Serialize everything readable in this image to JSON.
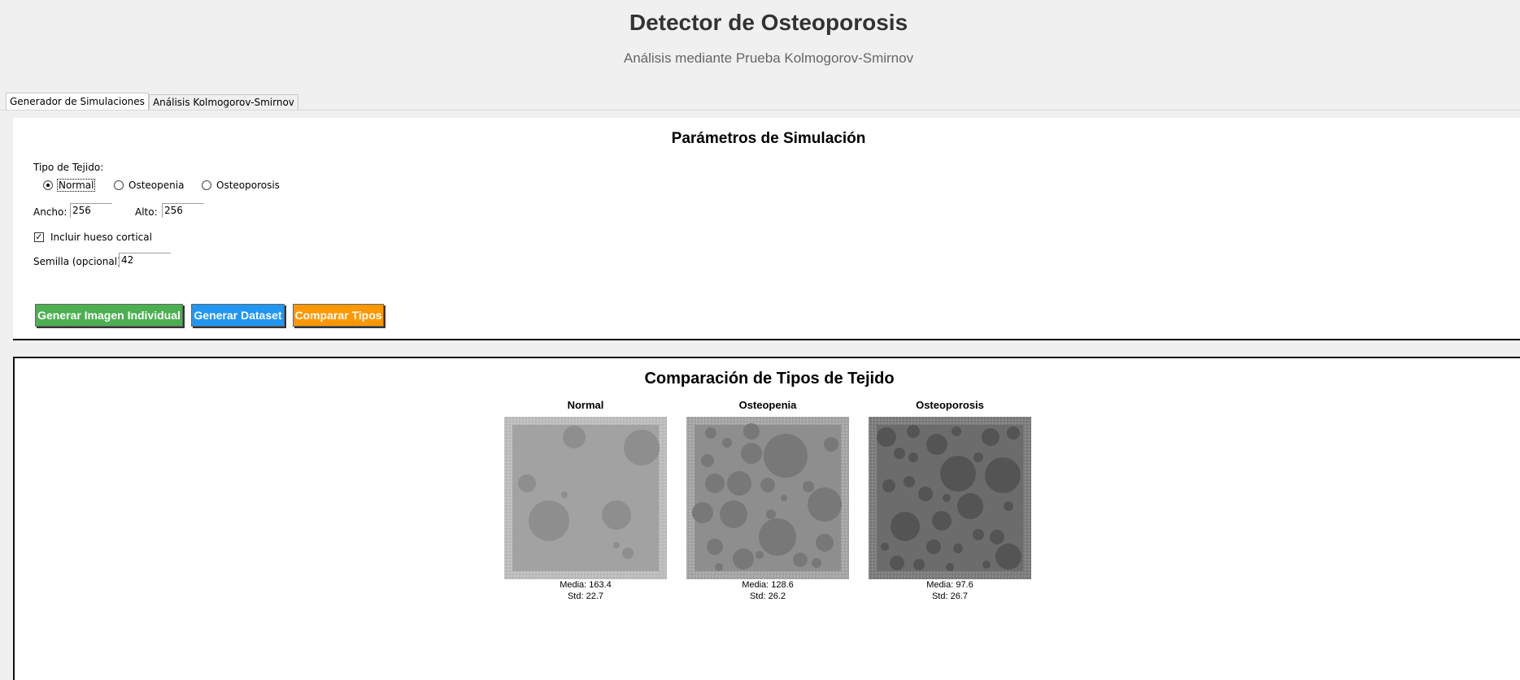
{
  "header": {
    "title": "Detector de Osteoporosis",
    "subtitle": "Análisis mediante Prueba Kolmogorov-Smirnov"
  },
  "tabs": [
    {
      "label": "Generador de Simulaciones",
      "active": true
    },
    {
      "label": "Análisis Kolmogorov-Smirnov",
      "active": false
    }
  ],
  "params": {
    "title": "Parámetros de Simulación",
    "tissue_label": "Tipo de Tejido:",
    "tissue_options": [
      "Normal",
      "Osteopenia",
      "Osteoporosis"
    ],
    "tissue_selected": "Normal",
    "width_label": "Ancho:",
    "width_value": "256",
    "height_label": "Alto:",
    "height_value": "256",
    "cortical_label": "Incluir hueso cortical",
    "cortical_checked": true,
    "seed_label": "Semilla (opcional):",
    "seed_value": "42"
  },
  "buttons": {
    "generate_single": "Generar Imagen Individual",
    "generate_dataset": "Generar Dataset",
    "compare_types": "Comparar Tipos"
  },
  "colors": {
    "green": "#4caf50",
    "blue": "#2196f3",
    "orange": "#ff9800"
  },
  "comparison": {
    "title": "Comparación de Tipos de Tejido",
    "items": [
      {
        "name": "Normal",
        "media": "Media: 163.4",
        "std": "Std: 22.7"
      },
      {
        "name": "Osteopenia",
        "media": "Media: 128.6",
        "std": "Std: 26.2"
      },
      {
        "name": "Osteoporosis",
        "media": "Media: 97.6",
        "std": "Std: 26.7"
      }
    ]
  }
}
